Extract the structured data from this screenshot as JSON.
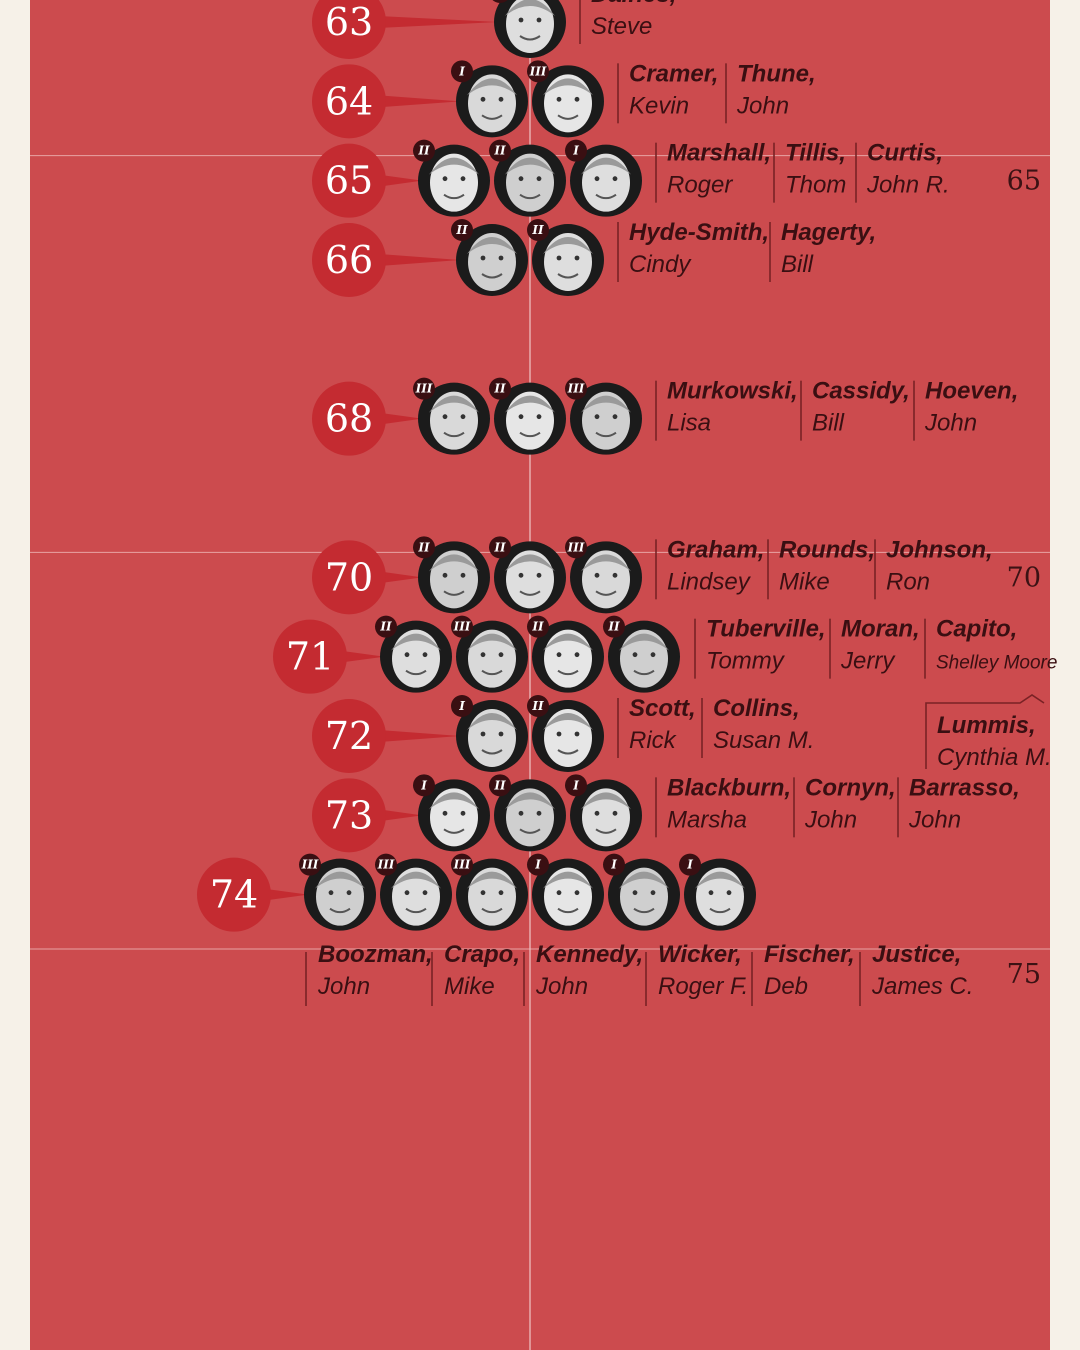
{
  "chart_data": {
    "type": "scatter",
    "y_axis": {
      "ticks": [
        65,
        70,
        75
      ]
    },
    "ages": [
      {
        "age": 63,
        "senators": [
          {
            "last": "Daines",
            "first": "Steve",
            "term": "II"
          }
        ]
      },
      {
        "age": 64,
        "senators": [
          {
            "last": "Cramer",
            "first": "Kevin",
            "term": "I"
          },
          {
            "last": "Thune",
            "first": "John",
            "term": "III"
          }
        ]
      },
      {
        "age": 65,
        "senators": [
          {
            "last": "Marshall",
            "first": "Roger",
            "term": "II"
          },
          {
            "last": "Tillis",
            "first": "Thom",
            "term": "II"
          },
          {
            "last": "Curtis",
            "first": "John R.",
            "term": "I"
          }
        ]
      },
      {
        "age": 66,
        "senators": [
          {
            "last": "Hyde-Smith",
            "first": "Cindy",
            "term": "II"
          },
          {
            "last": "Hagerty",
            "first": "Bill",
            "term": "II"
          }
        ]
      },
      {
        "age": 68,
        "senators": [
          {
            "last": "Murkowski",
            "first": "Lisa",
            "term": "III"
          },
          {
            "last": "Cassidy",
            "first": "Bill",
            "term": "II"
          },
          {
            "last": "Hoeven",
            "first": "John",
            "term": "III"
          }
        ]
      },
      {
        "age": 70,
        "senators": [
          {
            "last": "Graham",
            "first": "Lindsey",
            "term": "II"
          },
          {
            "last": "Rounds",
            "first": "Mike",
            "term": "II"
          },
          {
            "last": "Johnson",
            "first": "Ron",
            "term": "III"
          }
        ]
      },
      {
        "age": 71,
        "senators": [
          {
            "last": "Tuberville",
            "first": "Tommy",
            "term": "II"
          },
          {
            "last": "Moran",
            "first": "Jerry",
            "term": "III"
          },
          {
            "last": "Capito",
            "first": "Shelley Moore",
            "term": "II"
          },
          {
            "last": "Lummis",
            "first": "Cynthia M.",
            "term": "II"
          }
        ]
      },
      {
        "age": 72,
        "senators": [
          {
            "last": "Scott",
            "first": "Rick",
            "term": "I"
          },
          {
            "last": "Collins",
            "first": "Susan M.",
            "term": "II"
          }
        ]
      },
      {
        "age": 73,
        "senators": [
          {
            "last": "Blackburn",
            "first": "Marsha",
            "term": "I"
          },
          {
            "last": "Cornyn",
            "first": "John",
            "term": "II"
          },
          {
            "last": "Barrasso",
            "first": "John",
            "term": "I"
          }
        ]
      },
      {
        "age": 74,
        "senators": [
          {
            "last": "Boozman",
            "first": "John",
            "term": "III"
          },
          {
            "last": "Crapo",
            "first": "Mike",
            "term": "III"
          },
          {
            "last": "Kennedy",
            "first": "John",
            "term": "III"
          },
          {
            "last": "Wicker",
            "first": "Roger F.",
            "term": "I"
          },
          {
            "last": "Fischer",
            "first": "Deb",
            "term": "I"
          },
          {
            "last": "Justice",
            "first": "James C.",
            "term": "I"
          }
        ]
      }
    ],
    "colors": {
      "background": "#cc4b4e",
      "badge": "#c42b31",
      "term_badge": "#3a0f12",
      "text": "#3a0f12",
      "margin": "#f6f1e8"
    }
  }
}
